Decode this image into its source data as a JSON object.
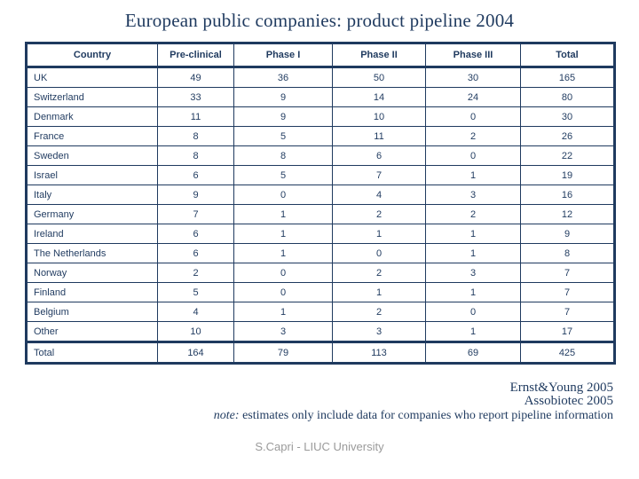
{
  "slide": {
    "title": "European public companies: product pipeline 2004"
  },
  "table": {
    "headers": [
      "Country",
      "Pre-clinical",
      "Phase I",
      "Phase II",
      "Phase III",
      "Total"
    ],
    "rows": [
      {
        "country": "UK",
        "values": [
          "49",
          "36",
          "50",
          "30",
          "165"
        ]
      },
      {
        "country": "Switzerland",
        "values": [
          "33",
          "9",
          "14",
          "24",
          "80"
        ]
      },
      {
        "country": "Denmark",
        "values": [
          "11",
          "9",
          "10",
          "0",
          "30"
        ]
      },
      {
        "country": "France",
        "values": [
          "8",
          "5",
          "11",
          "2",
          "26"
        ]
      },
      {
        "country": "Sweden",
        "values": [
          "8",
          "8",
          "6",
          "0",
          "22"
        ]
      },
      {
        "country": "Israel",
        "values": [
          "6",
          "5",
          "7",
          "1",
          "19"
        ]
      },
      {
        "country": "Italy",
        "values": [
          "9",
          "0",
          "4",
          "3",
          "16"
        ]
      },
      {
        "country": "Germany",
        "values": [
          "7",
          "1",
          "2",
          "2",
          "12"
        ]
      },
      {
        "country": "Ireland",
        "values": [
          "6",
          "1",
          "1",
          "1",
          "9"
        ]
      },
      {
        "country": "The Netherlands",
        "values": [
          "6",
          "1",
          "0",
          "1",
          "8"
        ]
      },
      {
        "country": "Norway",
        "values": [
          "2",
          "0",
          "2",
          "3",
          "7"
        ]
      },
      {
        "country": "Finland",
        "values": [
          "5",
          "0",
          "1",
          "1",
          "7"
        ]
      },
      {
        "country": "Belgium",
        "values": [
          "4",
          "1",
          "2",
          "0",
          "7"
        ]
      },
      {
        "country": "Other",
        "values": [
          "10",
          "3",
          "3",
          "1",
          "17"
        ]
      },
      {
        "country": "Total",
        "values": [
          "164",
          "79",
          "113",
          "69",
          "425"
        ],
        "is_total": true
      }
    ]
  },
  "footer": {
    "source_1": "Ernst&Young 2005",
    "source_2": "Assobiotec 2005",
    "note_label": "note:",
    "note_text": " estimates only include data for companies who report pipeline information"
  },
  "credit": "S.Capri - LIUC University",
  "colors": {
    "accent_navy": "#1f3a5f",
    "credit_gray": "#9a9a9a",
    "background": "#ffffff"
  }
}
